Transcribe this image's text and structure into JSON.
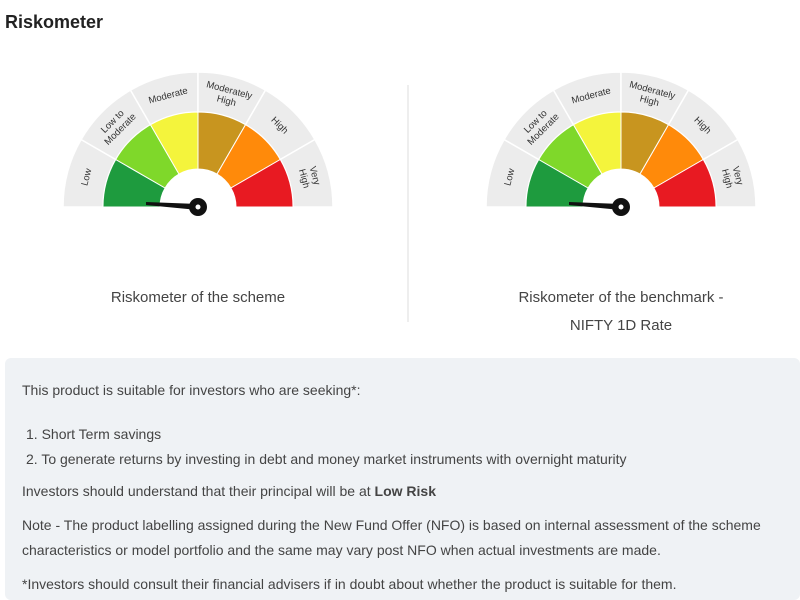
{
  "header": {
    "title": "Riskometer"
  },
  "riskometers": [
    {
      "caption": [
        "Riskometer of the scheme"
      ]
    },
    {
      "caption": [
        "Riskometer of the benchmark -",
        "NIFTY 1D Rate"
      ]
    }
  ],
  "levels": [
    {
      "label": [
        "Low"
      ],
      "color": "#1e9b3e"
    },
    {
      "label": [
        "Low to",
        "Moderate"
      ],
      "color": "#7fd82a"
    },
    {
      "label": [
        "Moderate"
      ],
      "color": "#f4f43c"
    },
    {
      "label": [
        "Moderately",
        "High"
      ],
      "color": "#c8951f"
    },
    {
      "label": [
        "High"
      ],
      "color": "#ff8a0a"
    },
    {
      "label": [
        "Very",
        "High"
      ],
      "color": "#e81a22"
    }
  ],
  "info": {
    "intro": "This product is suitable for investors who are seeking*:",
    "items": [
      "1. Short Term savings",
      "2. To generate returns by investing in debt and money market instruments with overnight maturity"
    ],
    "risk_text": "Investors should understand that their principal will be at",
    "risk_level": "Low Risk",
    "note": "Note - The product labelling assigned during the New Fund Offer (NFO) is based on internal assessment of the scheme characteristics or model portfolio and the same may vary post NFO when actual investments are made.",
    "footnote": "*Investors should consult their financial advisers if in doubt about whether the product is suitable for them."
  }
}
